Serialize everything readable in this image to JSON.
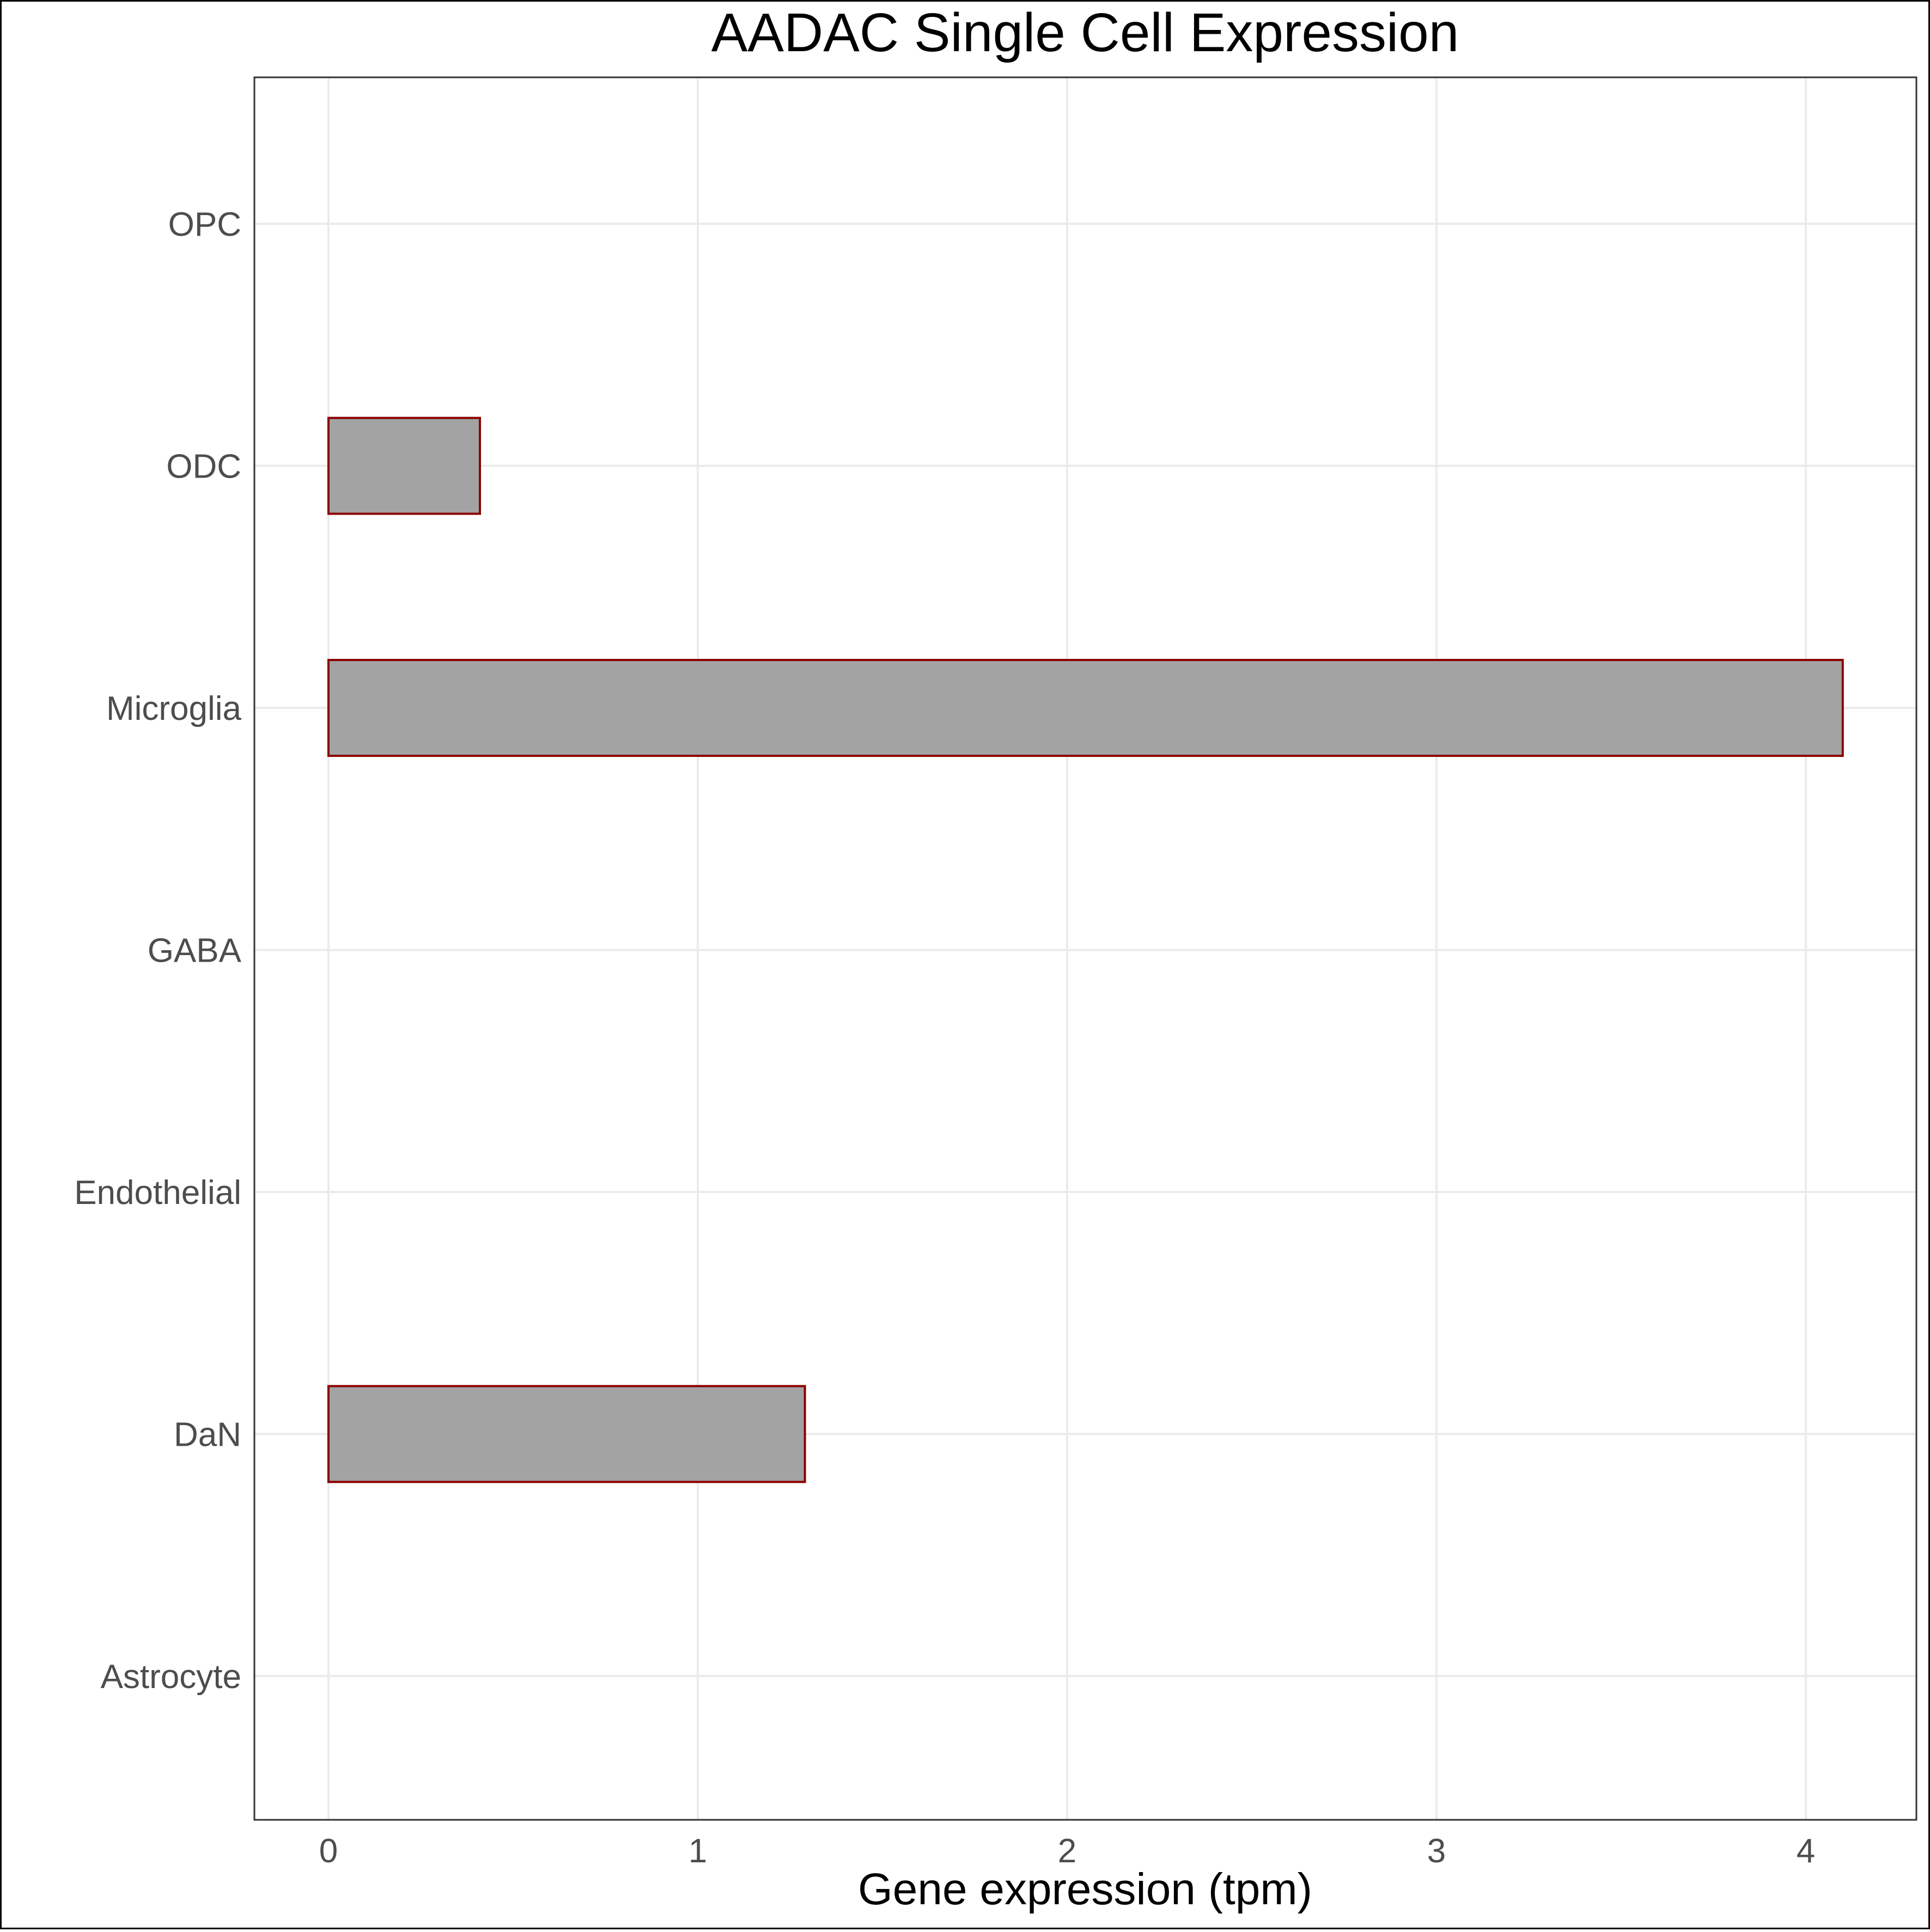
{
  "chart_data": {
    "type": "bar",
    "orientation": "horizontal",
    "title": "AADAC Single Cell Expression",
    "xlabel": "Gene expression (tpm)",
    "ylabel": "",
    "categories": [
      "Astrocyte",
      "DaN",
      "Endothelial",
      "GABA",
      "Microglia",
      "ODC",
      "OPC"
    ],
    "values": [
      0,
      1.29,
      0,
      0,
      4.1,
      0.41,
      0
    ],
    "xlim": [
      -0.2,
      4.3
    ],
    "xticks": [
      "0",
      "1",
      "2",
      "3",
      "4"
    ],
    "grid": true,
    "legend": "none",
    "colors": {
      "bar_fill": "#a3a3a3",
      "bar_stroke": "#8b0000",
      "grid": "#ebebeb",
      "panel_border": "#333333",
      "tick_text": "#4d4d4d"
    }
  }
}
